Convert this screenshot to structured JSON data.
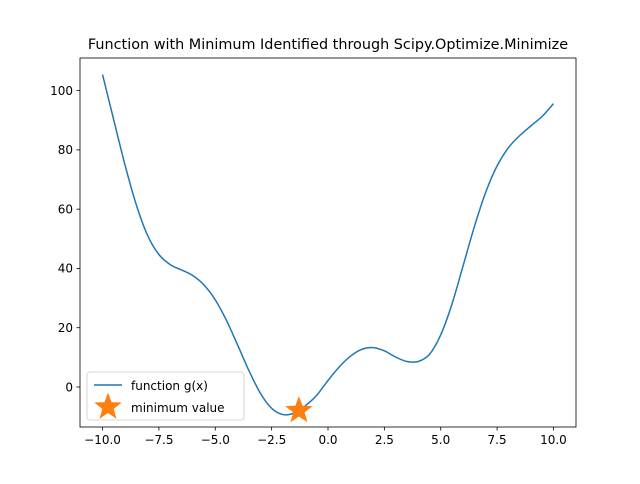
{
  "chart_data": {
    "type": "line",
    "title": "Function with Minimum Identified through Scipy.Optimize.Minimize",
    "xlabel": "",
    "ylabel": "",
    "xlim": [
      -11,
      11
    ],
    "ylim": [
      -13.5,
      111
    ],
    "xticks": [
      -10.0,
      -7.5,
      -5.0,
      -2.5,
      0.0,
      2.5,
      5.0,
      7.5,
      10.0
    ],
    "xtick_labels": [
      "−10.0",
      "−7.5",
      "−5.0",
      "−2.5",
      "0.0",
      "2.5",
      "5.0",
      "7.5",
      "10.0"
    ],
    "yticks": [
      0,
      20,
      40,
      60,
      80,
      100
    ],
    "ytick_labels": [
      "0",
      "20",
      "40",
      "60",
      "80",
      "100"
    ],
    "grid": false,
    "legend_position": "lower left",
    "series": [
      {
        "name": "function g(x)",
        "color": "#1f77b4",
        "style": "line",
        "x": [
          -10.0,
          -9.5,
          -9.0,
          -8.5,
          -8.0,
          -7.5,
          -7.0,
          -6.5,
          -6.0,
          -5.5,
          -5.0,
          -4.5,
          -4.0,
          -3.5,
          -3.0,
          -2.5,
          -2.0,
          -1.5,
          -1.0,
          -0.5,
          0.0,
          0.5,
          1.0,
          1.5,
          2.0,
          2.5,
          3.0,
          3.5,
          4.0,
          4.5,
          5.0,
          5.5,
          6.0,
          6.5,
          7.0,
          7.5,
          8.0,
          8.5,
          9.0,
          9.5,
          10.0
        ],
        "y": [
          105.4,
          90.0,
          74.8,
          61.4,
          51.1,
          44.7,
          41.3,
          39.5,
          37.6,
          34.4,
          29.4,
          22.4,
          14.0,
          5.4,
          -2.1,
          -7.2,
          -9.3,
          -8.8,
          -6.3,
          -2.8,
          2.2,
          6.8,
          10.4,
          12.7,
          13.3,
          12.2,
          10.1,
          8.6,
          8.6,
          11.0,
          17.6,
          28.0,
          41.1,
          54.3,
          65.8,
          74.6,
          80.7,
          84.8,
          88.1,
          91.3,
          95.6
        ]
      },
      {
        "name": "minimum value",
        "color": "#ff7f0e",
        "style": "star-marker",
        "x": [
          -1.29
        ],
        "y": [
          -7.95
        ]
      }
    ]
  }
}
